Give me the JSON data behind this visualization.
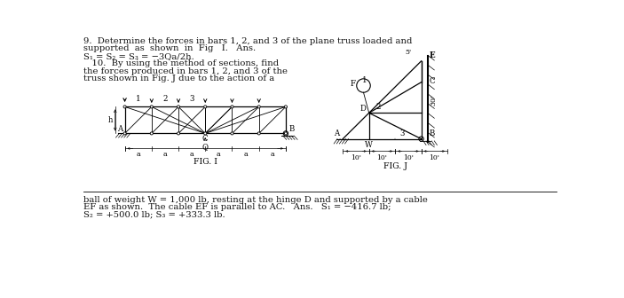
{
  "bg_color": "#ffffff",
  "text_color": "#111111",
  "title_line1": "9.  Determine the forces in bars 1, 2, and 3 of the plane truss loaded and",
  "title_line2": "supported  as  shown  in  Fig   I.   Ans.",
  "eq_line": "S₁ = S₂ = S₃ = −3Qa/2h.",
  "prob10_line1": "   10.  By using the method of sections, find",
  "prob10_line2": "the forces produced in bars 1, 2, and 3 of the",
  "prob10_line3": "truss shown in Fig. J due to the action of a",
  "bottom_line1": "ball of weight W = 1,000 lb, resting at the hinge D and supported by a cable",
  "bottom_line2": "EF as shown.  The cable EF is parallel to AC.   Ans.   S₁ = −416.7 lb;",
  "bottom_line3": "S₂ = +500.0 lb; S₃ = +333.3 lb.",
  "fig1_label": "FIG. I",
  "figj_label": "FIG. J"
}
